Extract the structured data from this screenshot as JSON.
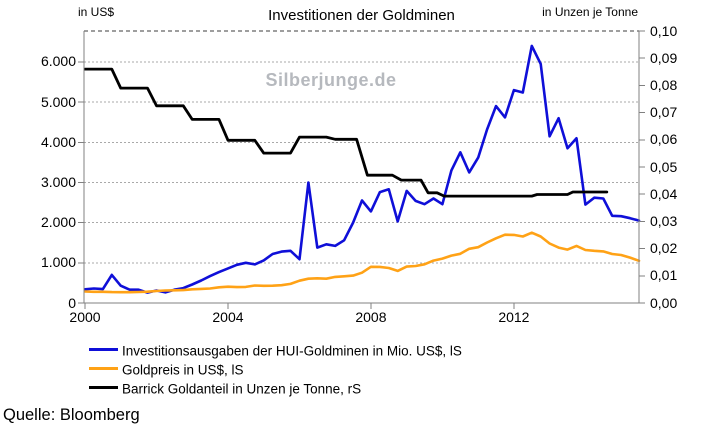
{
  "watermark": "Silberjunge.de",
  "source": "Quelle: Bloomberg",
  "colors": {
    "blue": "#0f0fd8",
    "orange": "#ffa216",
    "black": "#000000",
    "grid": "#a9a9a9",
    "axis": "#808080",
    "top_border": "#3c3c3c",
    "watermark": "#b6b9be"
  },
  "chart_data": {
    "type": "line",
    "title": "Investitionen der Goldminen",
    "grid": true,
    "legend_position": "bottom-left",
    "x_axis": {
      "range": [
        2000,
        2015.5
      ],
      "tick_values": [
        2000,
        2004,
        2008,
        2012
      ],
      "tick_labels": [
        "2000",
        "2004",
        "2008",
        "2012"
      ]
    },
    "left_axis": {
      "unit": "in US$",
      "range": [
        0,
        6770
      ],
      "tick_values": [
        0,
        1000,
        2000,
        3000,
        4000,
        5000,
        6000
      ],
      "tick_labels": [
        "0",
        "1.000",
        "2.000",
        "3.000",
        "4.000",
        "5.000",
        "6.000"
      ]
    },
    "right_axis": {
      "unit": "in Unzen je Tonne",
      "range": [
        0,
        0.1
      ],
      "tick_values": [
        0,
        0.01,
        0.02,
        0.03,
        0.04,
        0.05,
        0.06,
        0.07,
        0.08,
        0.09,
        0.1
      ],
      "tick_labels": [
        "0,00",
        "0,01",
        "0,02",
        "0,03",
        "0,04",
        "0,05",
        "0,06",
        "0,07",
        "0,08",
        "0,09",
        "0,10"
      ]
    },
    "series": [
      {
        "name": "Investitionsausgaben der HUI-Goldminen in Mio. US$, lS",
        "color": "#0f0fd8",
        "axis": "left",
        "width": 2.6,
        "points": [
          [
            2000.0,
            340
          ],
          [
            2000.25,
            360
          ],
          [
            2000.5,
            345
          ],
          [
            2000.75,
            700
          ],
          [
            2001.0,
            430
          ],
          [
            2001.25,
            330
          ],
          [
            2001.5,
            330
          ],
          [
            2001.75,
            260
          ],
          [
            2002.0,
            310
          ],
          [
            2002.25,
            265
          ],
          [
            2002.5,
            330
          ],
          [
            2002.75,
            370
          ],
          [
            2003.0,
            460
          ],
          [
            2003.25,
            560
          ],
          [
            2003.5,
            670
          ],
          [
            2003.75,
            770
          ],
          [
            2004.0,
            860
          ],
          [
            2004.25,
            950
          ],
          [
            2004.5,
            1000
          ],
          [
            2004.75,
            960
          ],
          [
            2005.0,
            1060
          ],
          [
            2005.25,
            1220
          ],
          [
            2005.5,
            1280
          ],
          [
            2005.75,
            1300
          ],
          [
            2006.0,
            1090
          ],
          [
            2006.25,
            3000
          ],
          [
            2006.5,
            1380
          ],
          [
            2006.75,
            1460
          ],
          [
            2007.0,
            1420
          ],
          [
            2007.25,
            1560
          ],
          [
            2007.5,
            2000
          ],
          [
            2007.75,
            2550
          ],
          [
            2008.0,
            2280
          ],
          [
            2008.25,
            2760
          ],
          [
            2008.5,
            2830
          ],
          [
            2008.75,
            2030
          ],
          [
            2009.0,
            2790
          ],
          [
            2009.25,
            2540
          ],
          [
            2009.5,
            2460
          ],
          [
            2009.75,
            2600
          ],
          [
            2010.0,
            2460
          ],
          [
            2010.25,
            3300
          ],
          [
            2010.5,
            3750
          ],
          [
            2010.75,
            3250
          ],
          [
            2011.0,
            3620
          ],
          [
            2011.25,
            4320
          ],
          [
            2011.5,
            4900
          ],
          [
            2011.75,
            4620
          ],
          [
            2012.0,
            5300
          ],
          [
            2012.25,
            5240
          ],
          [
            2012.5,
            6400
          ],
          [
            2012.75,
            5950
          ],
          [
            2013.0,
            4150
          ],
          [
            2013.25,
            4600
          ],
          [
            2013.5,
            3850
          ],
          [
            2013.75,
            4100
          ],
          [
            2014.0,
            2450
          ],
          [
            2014.25,
            2620
          ],
          [
            2014.5,
            2600
          ],
          [
            2014.75,
            2170
          ],
          [
            2015.0,
            2160
          ],
          [
            2015.25,
            2110
          ],
          [
            2015.5,
            2050
          ]
        ]
      },
      {
        "name": "Goldpreis in US$, lS",
        "color": "#ffa216",
        "axis": "left",
        "width": 2.6,
        "points": [
          [
            2000.0,
            285
          ],
          [
            2000.25,
            280
          ],
          [
            2000.5,
            278
          ],
          [
            2000.75,
            272
          ],
          [
            2001.0,
            268
          ],
          [
            2001.25,
            270
          ],
          [
            2001.5,
            274
          ],
          [
            2001.75,
            282
          ],
          [
            2002.0,
            298
          ],
          [
            2002.25,
            310
          ],
          [
            2002.5,
            315
          ],
          [
            2002.75,
            322
          ],
          [
            2003.0,
            342
          ],
          [
            2003.25,
            350
          ],
          [
            2003.5,
            362
          ],
          [
            2003.75,
            390
          ],
          [
            2004.0,
            405
          ],
          [
            2004.25,
            395
          ],
          [
            2004.5,
            400
          ],
          [
            2004.75,
            435
          ],
          [
            2005.0,
            428
          ],
          [
            2005.25,
            430
          ],
          [
            2005.5,
            442
          ],
          [
            2005.75,
            475
          ],
          [
            2006.0,
            555
          ],
          [
            2006.25,
            605
          ],
          [
            2006.5,
            615
          ],
          [
            2006.75,
            605
          ],
          [
            2007.0,
            650
          ],
          [
            2007.25,
            665
          ],
          [
            2007.5,
            682
          ],
          [
            2007.75,
            755
          ],
          [
            2008.0,
            900
          ],
          [
            2008.25,
            898
          ],
          [
            2008.5,
            872
          ],
          [
            2008.75,
            800
          ],
          [
            2009.0,
            905
          ],
          [
            2009.25,
            922
          ],
          [
            2009.5,
            962
          ],
          [
            2009.75,
            1055
          ],
          [
            2010.0,
            1105
          ],
          [
            2010.25,
            1180
          ],
          [
            2010.5,
            1225
          ],
          [
            2010.75,
            1350
          ],
          [
            2011.0,
            1390
          ],
          [
            2011.25,
            1505
          ],
          [
            2011.5,
            1610
          ],
          [
            2011.75,
            1700
          ],
          [
            2012.0,
            1695
          ],
          [
            2012.25,
            1655
          ],
          [
            2012.5,
            1750
          ],
          [
            2012.75,
            1655
          ],
          [
            2013.0,
            1480
          ],
          [
            2013.25,
            1380
          ],
          [
            2013.5,
            1330
          ],
          [
            2013.75,
            1420
          ],
          [
            2014.0,
            1320
          ],
          [
            2014.25,
            1300
          ],
          [
            2014.5,
            1285
          ],
          [
            2014.75,
            1220
          ],
          [
            2015.0,
            1195
          ],
          [
            2015.25,
            1130
          ],
          [
            2015.5,
            1050
          ]
        ]
      },
      {
        "name": "Barrick Goldanteil in Unzen je Tonne, rS",
        "color": "#000000",
        "axis": "right",
        "width": 2.8,
        "points": [
          [
            2000.0,
            0.086
          ],
          [
            2000.75,
            0.086
          ],
          [
            2001.0,
            0.079
          ],
          [
            2001.75,
            0.079
          ],
          [
            2002.0,
            0.0725
          ],
          [
            2002.75,
            0.0725
          ],
          [
            2003.0,
            0.0675
          ],
          [
            2003.75,
            0.0675
          ],
          [
            2004.0,
            0.0598
          ],
          [
            2004.75,
            0.0598
          ],
          [
            2005.0,
            0.0551
          ],
          [
            2005.75,
            0.0551
          ],
          [
            2006.0,
            0.061
          ],
          [
            2006.75,
            0.061
          ],
          [
            2007.0,
            0.0602
          ],
          [
            2007.6,
            0.0602
          ],
          [
            2007.9,
            0.047
          ],
          [
            2008.6,
            0.047
          ],
          [
            2008.85,
            0.0452
          ],
          [
            2009.4,
            0.0452
          ],
          [
            2009.6,
            0.0405
          ],
          [
            2009.85,
            0.0405
          ],
          [
            2010.05,
            0.0393
          ],
          [
            2012.5,
            0.0393
          ],
          [
            2012.65,
            0.0399
          ],
          [
            2013.5,
            0.0399
          ],
          [
            2013.65,
            0.0408
          ],
          [
            2014.6,
            0.0408
          ]
        ]
      }
    ]
  }
}
